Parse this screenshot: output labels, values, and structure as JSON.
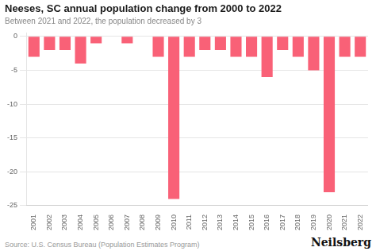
{
  "chart_data": {
    "type": "bar",
    "title": "Neeses, SC annual population change from 2000 to 2022",
    "subtitle": "Between 2021 and 2022, the population decreased by 3",
    "source": "Source: U.S. Census Bureau (Population Estimates Program)",
    "branding": "Neilsberg",
    "categories": [
      "2001",
      "2002",
      "2003",
      "2004",
      "2005",
      "2006",
      "2007",
      "2008",
      "2009",
      "2010",
      "2011",
      "2012",
      "2013",
      "2014",
      "2015",
      "2016",
      "2017",
      "2018",
      "2019",
      "2020",
      "2021",
      "2022"
    ],
    "values": [
      -3,
      -2,
      -2,
      -4,
      -1,
      0,
      -1,
      0,
      -3,
      -24,
      -3,
      -2,
      -2,
      -3,
      -3,
      -6,
      -2,
      -3,
      -5,
      -23,
      -3,
      -3
    ],
    "color": "#f96177",
    "ylim": [
      -25,
      0.5
    ],
    "yticks": [
      0,
      -5,
      -10,
      -15,
      -20,
      -25
    ],
    "grid": true
  }
}
